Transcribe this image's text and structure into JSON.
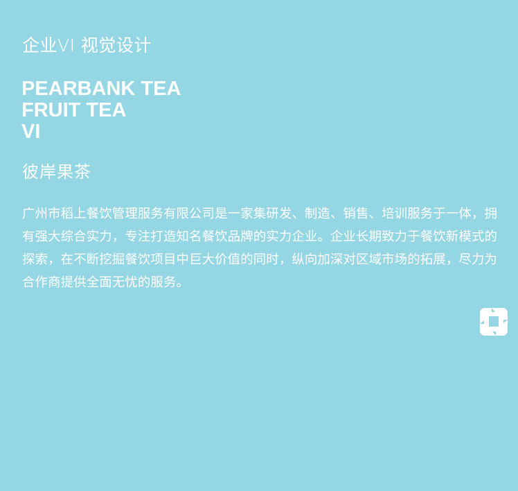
{
  "header": {
    "subtitle": "企业VI 视觉设计"
  },
  "brand": {
    "title_lines": [
      "PEARBANK TEA",
      "FRUIT TEA",
      "VI"
    ],
    "chinese_name": "彼岸果茶"
  },
  "description": "广州市稻上餐饮管理服务有限公司是一家集研发、制造、销售、培训服务于一体，拥有强大综合实力，专注打造知名餐饮品牌的实力企业。企业长期致力于餐饮新模式的探索，在不断挖掘餐饮项目中巨大价值的同时，纵向加深对区域市场的拓展，尽力为合作商提供全面无忧的服务。",
  "logo": {
    "icon": "brand-logo-icon",
    "color": "#ffffff"
  },
  "colors": {
    "background": "#94d6e3",
    "text": "#ffffff"
  }
}
